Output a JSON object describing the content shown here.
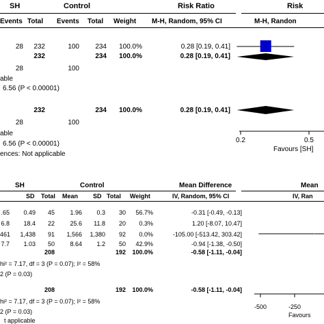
{
  "chart_data": [
    {
      "type": "table",
      "title": "",
      "header": {
        "group_sh": "SH",
        "group_control": "Control",
        "measure": "Risk Ratio",
        "measure_right": "Risk",
        "col_events_sh": "Events",
        "col_total_sh": "Total",
        "col_events_ctrl": "Events",
        "col_total_ctrl": "Total",
        "col_weight": "Weight",
        "col_method": "M-H, Random, 95% CI",
        "col_method_right": "M-H, Randon"
      },
      "studies": [
        {
          "events_sh": "28",
          "total_sh": "232",
          "events_ctrl": "100",
          "total_ctrl": "234",
          "weight": "100.0%",
          "ci_text": "0.28 [0.19, 0.41]",
          "estimate": 0.28,
          "lower": 0.19,
          "upper": 0.41
        }
      ],
      "subtotal": {
        "total_sh": "232",
        "total_ctrl": "234",
        "weight": "100.0%",
        "ci_text": "0.28 [0.19, 0.41]",
        "estimate": 0.28,
        "lower": 0.19,
        "upper": 0.41
      },
      "subtotal_events": {
        "sh": "28",
        "ctrl": "100"
      },
      "heterogeneity_text": "able",
      "test_text": "6.56 (P < 0.00001)",
      "total": {
        "total_sh": "232",
        "total_ctrl": "234",
        "weight": "100.0%",
        "ci_text": "0.28 [0.19, 0.41]",
        "estimate": 0.28,
        "lower": 0.19,
        "upper": 0.41
      },
      "total_events": {
        "sh": "28",
        "ctrl": "100"
      },
      "total_heterogeneity_text": "able",
      "total_test_text": "6.56 (P < 0.00001)",
      "subgroup_text": "ences: Not applicable",
      "axis": {
        "ticks": [
          0.2,
          0.5
        ],
        "tick_labels": [
          "0.2",
          "0.5"
        ],
        "range": [
          0.15,
          0.62
        ],
        "favours_left": "Favours [SH]"
      },
      "colors": {
        "square": "#0000cc",
        "diamond": "#000000"
      }
    },
    {
      "type": "table",
      "title": "",
      "header": {
        "group_sh": "SH",
        "group_control": "Control",
        "measure": "Mean Difference",
        "measure_right": "Mean",
        "col_sd_sh": "SD",
        "col_total_sh": "Total",
        "col_mean_ctrl": "Mean",
        "col_sd_ctrl": "SD",
        "col_total_ctrl": "Total",
        "col_weight": "Weight",
        "col_method": "IV, Random, 95% CI",
        "col_method_right": "IV, Ran"
      },
      "studies": [
        {
          "mean_sh": ".65",
          "sd_sh": "0.49",
          "total_sh": "45",
          "mean_ctrl": "1.96",
          "sd_ctrl": "0.3",
          "total_ctrl": "30",
          "weight": "56.7%",
          "ci_text": "-0.31 [-0.49, -0.13]",
          "estimate": -0.31,
          "lower": -0.49,
          "upper": -0.13
        },
        {
          "mean_sh": "6.8",
          "sd_sh": "18.4",
          "total_sh": "22",
          "mean_ctrl": "25.6",
          "sd_ctrl": "11.8",
          "total_ctrl": "20",
          "weight": "0.3%",
          "ci_text": "1.20 [-8.07, 10.47]",
          "estimate": 1.2,
          "lower": -8.07,
          "upper": 10.47
        },
        {
          "mean_sh": "461",
          "sd_sh": "1,438",
          "total_sh": "91",
          "mean_ctrl": "1,566",
          "sd_ctrl": "1,380",
          "total_ctrl": "92",
          "weight": "0.0%",
          "ci_text": "-105.00 [-513.42, 303.42]",
          "estimate": -105.0,
          "lower": -513.42,
          "upper": 303.42
        },
        {
          "mean_sh": "7.7",
          "sd_sh": "1.03",
          "total_sh": "50",
          "mean_ctrl": "8.64",
          "sd_ctrl": "1.2",
          "total_ctrl": "50",
          "weight": "42.9%",
          "ci_text": "-0.94 [-1.38, -0.50]",
          "estimate": -0.94,
          "lower": -1.38,
          "upper": -0.5
        }
      ],
      "subtotal": {
        "total_sh": "208",
        "total_ctrl": "192",
        "weight": "100.0%",
        "ci_text": "-0.58 [-1.11, -0.04]",
        "estimate": -0.58,
        "lower": -1.11,
        "upper": -0.04
      },
      "heterogeneity_text": "hi² = 7.17, df = 3 (P = 0.07); I² = 58%",
      "test_text": "2 (P = 0.03)",
      "total": {
        "total_sh": "208",
        "total_ctrl": "192",
        "weight": "100.0%",
        "ci_text": "-0.58 [-1.11, -0.04]",
        "estimate": -0.58,
        "lower": -1.11,
        "upper": -0.04
      },
      "total_heterogeneity_text": "hi² = 7.17, df = 3 (P = 0.07); I² = 58%",
      "total_test_text": "2 (P = 0.03)",
      "subgroup_text": "t applicable",
      "axis": {
        "ticks": [
          -500,
          -250
        ],
        "tick_labels": [
          "-500",
          "-250"
        ],
        "range": [
          -530,
          0
        ],
        "favours_left": "Favours"
      },
      "colors": {
        "line": "#000000",
        "diamond": "#000000"
      }
    }
  ]
}
